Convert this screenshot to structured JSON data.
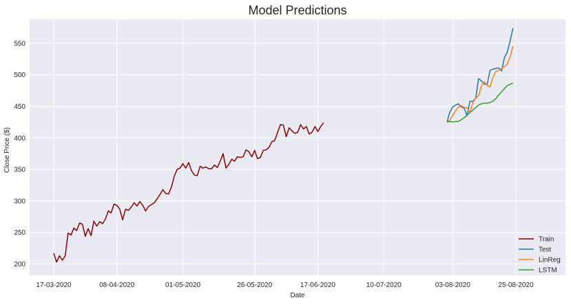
{
  "chart_data": {
    "type": "line",
    "title": "Model Predictions",
    "xlabel": "Date",
    "ylabel": "Close Price ($)",
    "x_tick_labels": [
      "17-03-2020",
      "08-04-2020",
      "01-05-2020",
      "26-05-2020",
      "17-06-2020",
      "10-07-2020",
      "03-08-2020",
      "25-08-2020"
    ],
    "y_ticks": [
      200,
      250,
      300,
      350,
      400,
      450,
      500,
      550
    ],
    "ylim": [
      182,
      588
    ],
    "grid": true,
    "legend_position": "lower-right",
    "series": [
      {
        "name": "Train",
        "color": "#8b0000",
        "x_start": "17-03-2020",
        "values": [
          217,
          203,
          213,
          206,
          213,
          249,
          246,
          257,
          253,
          265,
          263,
          244,
          256,
          245,
          268,
          260,
          267,
          264,
          271,
          284,
          281,
          295,
          293,
          287,
          270,
          287,
          285,
          290,
          297,
          292,
          299,
          293,
          284,
          291,
          294,
          297,
          303,
          310,
          318,
          312,
          311,
          322,
          339,
          350,
          352,
          359,
          352,
          361,
          348,
          341,
          340,
          355,
          352,
          354,
          351,
          351,
          357,
          353,
          363,
          375,
          352,
          358,
          366,
          363,
          370,
          369,
          370,
          381,
          378,
          370,
          380,
          367,
          369,
          380,
          381,
          385,
          394,
          396,
          409,
          421,
          420,
          402,
          416,
          411,
          407,
          409,
          421,
          414,
          418,
          406,
          409,
          418,
          410,
          418,
          424
        ]
      },
      {
        "name": "Test",
        "color": "#1f77b4",
        "x_start": "01-08-2020",
        "values": [
          425,
          441,
          449,
          452,
          454,
          449,
          447,
          435,
          458,
          458,
          463,
          494,
          490,
          485,
          485,
          507,
          509,
          510,
          511,
          506,
          527,
          536,
          554,
          574
        ]
      },
      {
        "name": "LinReg",
        "color": "#ff7f0e",
        "x_start": "01-08-2020",
        "values": [
          425,
          428,
          436,
          443,
          449,
          451,
          448,
          448,
          440,
          456,
          463,
          467,
          482,
          489,
          483,
          481,
          496,
          505,
          507,
          510,
          513,
          517,
          529,
          545
        ]
      },
      {
        "name": "LSTM",
        "color": "#2ca02c",
        "x_start": "01-08-2020",
        "values": [
          425,
          426,
          425,
          426,
          426,
          429,
          432,
          436,
          440,
          444,
          448,
          452,
          454,
          455,
          455,
          456,
          458,
          462,
          468,
          473,
          478,
          483,
          485,
          487
        ]
      }
    ]
  }
}
